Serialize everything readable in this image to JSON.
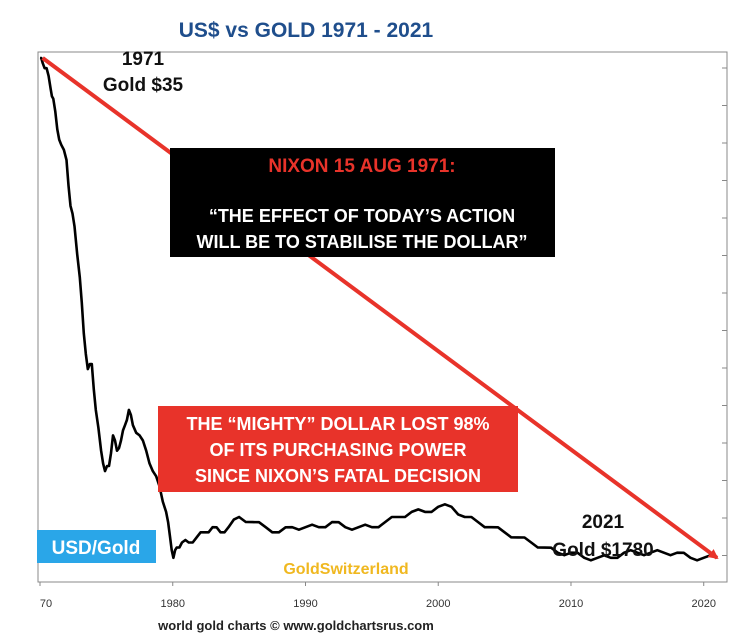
{
  "chart_data": {
    "type": "line",
    "title": "US$ vs GOLD   1971 - 2021",
    "xlabel": "",
    "ylabel": "",
    "xlim": [
      1970,
      2021
    ],
    "x_ticks": [
      "70",
      "1980",
      "1990",
      "2000",
      "2010",
      "2020"
    ],
    "grid": false,
    "series": [
      {
        "name": "USD/Gold",
        "color": "#000000",
        "points": [
          [
            1970.0,
            100
          ],
          [
            1970.2,
            99
          ],
          [
            1970.5,
            98
          ],
          [
            1970.8,
            94
          ],
          [
            1971.0,
            92
          ],
          [
            1971.3,
            86
          ],
          [
            1971.6,
            83
          ],
          [
            1972.0,
            80
          ],
          [
            1972.3,
            71
          ],
          [
            1972.6,
            67
          ],
          [
            1973.0,
            57
          ],
          [
            1973.3,
            46
          ],
          [
            1973.6,
            39
          ],
          [
            1973.9,
            40
          ],
          [
            1974.2,
            31
          ],
          [
            1974.6,
            23
          ],
          [
            1974.9,
            19
          ],
          [
            1975.2,
            20
          ],
          [
            1975.5,
            26
          ],
          [
            1975.8,
            23
          ],
          [
            1976.1,
            25
          ],
          [
            1976.4,
            28
          ],
          [
            1976.7,
            31
          ],
          [
            1977.0,
            28
          ],
          [
            1977.5,
            26
          ],
          [
            1978.0,
            23
          ],
          [
            1978.5,
            19
          ],
          [
            1979.0,
            16
          ],
          [
            1979.5,
            11
          ],
          [
            1979.8,
            6
          ],
          [
            1980.05,
            2
          ],
          [
            1980.3,
            4
          ],
          [
            1980.7,
            5
          ],
          [
            1981.2,
            5
          ],
          [
            1981.8,
            6
          ],
          [
            1982.4,
            7
          ],
          [
            1983.0,
            8
          ],
          [
            1983.6,
            7
          ],
          [
            1984.2,
            8
          ],
          [
            1985.0,
            10
          ],
          [
            1986.0,
            9
          ],
          [
            1987.0,
            8
          ],
          [
            1988.0,
            7
          ],
          [
            1989.0,
            8
          ],
          [
            1990.0,
            8
          ],
          [
            1991.0,
            8
          ],
          [
            1992.0,
            9
          ],
          [
            1993.0,
            8
          ],
          [
            1994.0,
            8
          ],
          [
            1995.0,
            8
          ],
          [
            1996.0,
            9
          ],
          [
            1997.0,
            10
          ],
          [
            1998.0,
            11
          ],
          [
            1999.0,
            11
          ],
          [
            2000.0,
            12
          ],
          [
            2001.0,
            12
          ],
          [
            2002.0,
            10
          ],
          [
            2003.0,
            9
          ],
          [
            2004.0,
            8
          ],
          [
            2005.0,
            7
          ],
          [
            2006.0,
            6
          ],
          [
            2007.0,
            5
          ],
          [
            2008.0,
            4
          ],
          [
            2009.0,
            3
          ],
          [
            2010.0,
            3
          ],
          [
            2011.0,
            2
          ],
          [
            2012.0,
            2
          ],
          [
            2013.0,
            2
          ],
          [
            2014.0,
            3
          ],
          [
            2015.0,
            3
          ],
          [
            2016.0,
            3
          ],
          [
            2017.0,
            3
          ],
          [
            2018.0,
            3
          ],
          [
            2019.0,
            2
          ],
          [
            2020.0,
            2
          ],
          [
            2021.0,
            2
          ]
        ]
      },
      {
        "name": "trend",
        "color": "#e8332a",
        "points": [
          [
            1970.2,
            100
          ],
          [
            2021.0,
            2
          ]
        ]
      }
    ],
    "legend": {
      "label": "USD/Gold",
      "position": "bottom-left"
    }
  },
  "annotations": {
    "start_year": "1971",
    "start_price": "Gold $35",
    "end_year": "2021",
    "end_price": "Gold $1780",
    "quote_heading": "NIXON 15 AUG 1971:",
    "quote_line1": "“THE EFFECT OF TODAY’S ACTION",
    "quote_line2": "WILL BE TO STABILISE THE DOLLAR”",
    "loss_line1": "THE “MIGHTY” DOLLAR LOST 98%",
    "loss_line2": "OF ITS PURCHASING POWER",
    "loss_line3": "SINCE NIXON’S FATAL DECISION"
  },
  "watermark": "GoldSwitzerland",
  "credit": "world gold charts © www.goldchartsrus.com",
  "colors": {
    "title": "#1f4e8c",
    "quote_box": "#000000",
    "quote_heading": "#e8332a",
    "loss_box": "#e8332a",
    "legend_box": "#2aa6e8",
    "watermark": "#f0b820",
    "arrow": "#e8332a"
  }
}
